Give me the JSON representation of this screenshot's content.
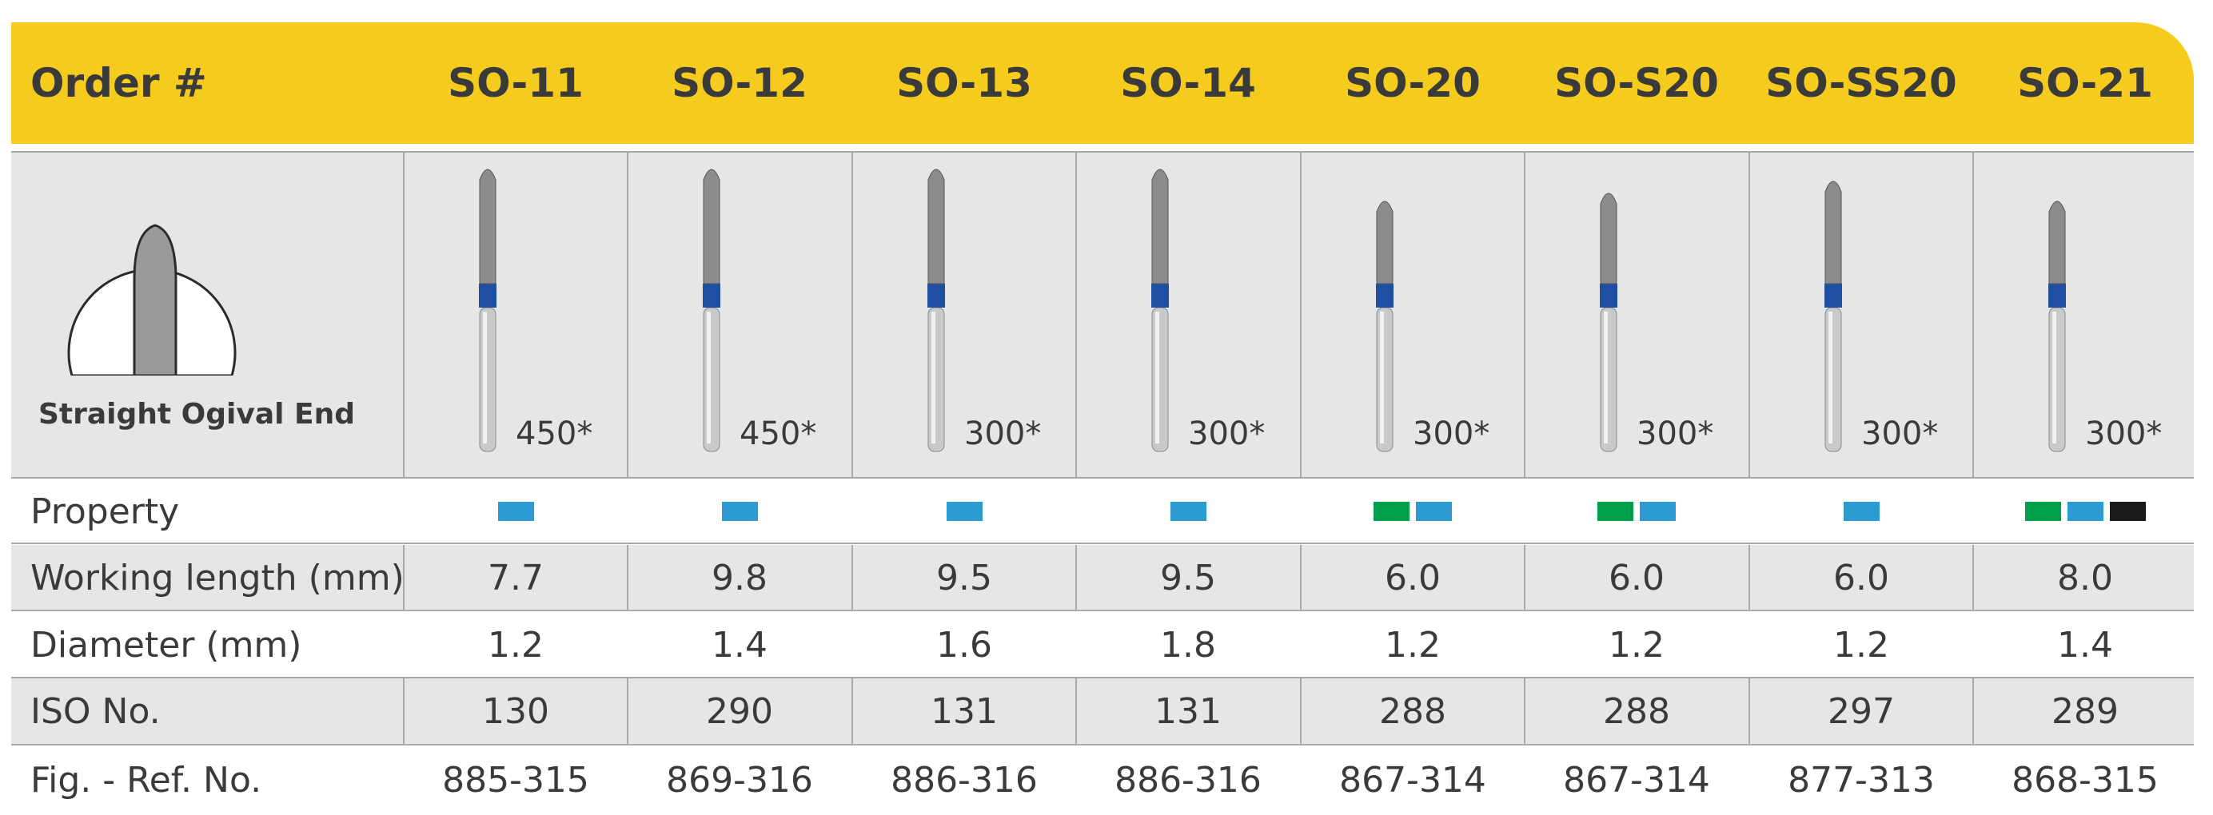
{
  "header": {
    "order_label": "Order #",
    "codes": [
      "SO-11",
      "SO-12",
      "SO-13",
      "SO-14",
      "SO-20",
      "SO-S20",
      "SO-SS20",
      "SO-21"
    ]
  },
  "shape": {
    "label": "Straight Ogival End",
    "icon": "straight-ogival-end-icon"
  },
  "speeds": [
    "450*",
    "450*",
    "300*",
    "300*",
    "300*",
    "300*",
    "300*",
    "300*"
  ],
  "property": {
    "label": "Property",
    "colors": {
      "green": "#00a04a",
      "blue": "#2c9bd3",
      "black": "#1a1a1a"
    },
    "markers": [
      [
        "blue"
      ],
      [
        "blue"
      ],
      [
        "blue"
      ],
      [
        "blue"
      ],
      [
        "green",
        "blue"
      ],
      [
        "green",
        "blue"
      ],
      [
        "blue"
      ],
      [
        "green",
        "blue",
        "black"
      ]
    ]
  },
  "working_length": {
    "label": "Working length (mm)",
    "values": [
      "7.7",
      "9.8",
      "9.5",
      "9.5",
      "6.0",
      "6.0",
      "6.0",
      "8.0"
    ]
  },
  "diameter": {
    "label": "Diameter (mm)",
    "values": [
      "1.2",
      "1.4",
      "1.6",
      "1.8",
      "1.2",
      "1.2",
      "1.2",
      "1.4"
    ]
  },
  "iso": {
    "label": "ISO No.",
    "values": [
      "130",
      "290",
      "131",
      "131",
      "288",
      "288",
      "297",
      "289"
    ]
  },
  "ref": {
    "label": "Fig. - Ref. No.",
    "values": [
      "885-315",
      "869-316",
      "886-316",
      "886-316",
      "867-314",
      "867-314",
      "877-313",
      "868-315"
    ]
  },
  "colors": {
    "header_bg": "#f5cc1e",
    "row_grey": "#e6e6e6",
    "shank_band": "#1f4fa3"
  }
}
